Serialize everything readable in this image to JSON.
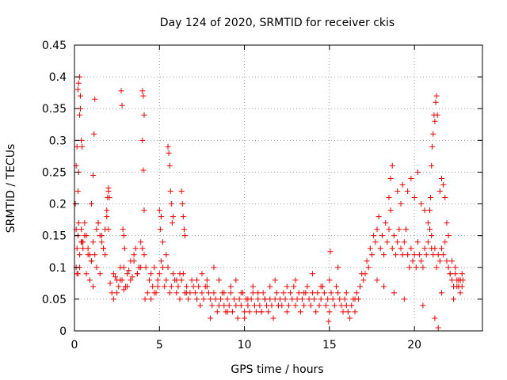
{
  "chart_data": {
    "type": "scatter",
    "title": "Day 124 of 2020, SRMTID for receiver ckis",
    "xlabel": "GPS time / hours",
    "ylabel": "SRMTID / TECUs",
    "xlim": [
      0,
      24
    ],
    "ylim": [
      0,
      0.45
    ],
    "xticks": [
      0,
      5,
      10,
      15,
      20
    ],
    "xtick_labels": [
      "0",
      "5",
      "10",
      "15",
      "20"
    ],
    "yticks": [
      0,
      0.05,
      0.1,
      0.15,
      0.2,
      0.25,
      0.3,
      0.35,
      0.4,
      0.45
    ],
    "ytick_labels": [
      "0",
      "0.05",
      "0.1",
      "0.15",
      "0.2",
      "0.25",
      "0.3",
      "0.35",
      "0.4",
      "0.45"
    ],
    "grid": true,
    "marker": "+",
    "color": "#ff0000",
    "series": [
      {
        "name": "SRMTID",
        "x": [
          0.05,
          0.1,
          0.15,
          0.2,
          0.25,
          0.3,
          0.35,
          0.4,
          0.45,
          0.5,
          0.6,
          0.7,
          0.8,
          0.9,
          1.0,
          1.1,
          1.2,
          1.3,
          1.4,
          1.5,
          1.6,
          1.7,
          1.8,
          1.9,
          2.0,
          0.1,
          0.2,
          0.3,
          0.35,
          0.4,
          0.45,
          0.3,
          0.2,
          0.15,
          0.1,
          0.25,
          1.2,
          1.15,
          1.1,
          1.0,
          1.9,
          1.95,
          2.0,
          2.05,
          0.2,
          0.3,
          0.5,
          0.7,
          0.9,
          1.1,
          1.3,
          1.5,
          1.7,
          0.15,
          0.25,
          0.4,
          0.6,
          0.8,
          1.0,
          1.4,
          1.6,
          1.8,
          2.0,
          2.1,
          2.2,
          2.3,
          2.4,
          2.5,
          2.6,
          2.7,
          2.8,
          2.9,
          3.0,
          3.1,
          3.2,
          3.3,
          3.4,
          3.5,
          3.6,
          3.7,
          3.8,
          3.9,
          4.0,
          4.1,
          4.2,
          2.75,
          2.8,
          2.85,
          2.9,
          2.95,
          4.0,
          4.05,
          4.1,
          4.0,
          4.05,
          4.1,
          2.3,
          2.5,
          2.7,
          2.9,
          3.1,
          3.3,
          3.5,
          3.7,
          3.9,
          4.15,
          4.3,
          4.4,
          4.5,
          4.6,
          4.7,
          4.8,
          4.9,
          5.0,
          5.1,
          5.2,
          5.3,
          5.4,
          5.5,
          5.6,
          5.7,
          5.8,
          5.9,
          6.0,
          6.1,
          6.2,
          6.3,
          6.4,
          6.5,
          6.6,
          6.7,
          6.8,
          6.9,
          7.0,
          5.0,
          5.05,
          5.1,
          5.5,
          5.55,
          5.6,
          5.65,
          5.7,
          5.75,
          5.8,
          6.3,
          6.35,
          6.4,
          6.45,
          6.5,
          4.5,
          4.7,
          4.9,
          5.2,
          5.4,
          6.0,
          6.2,
          6.6,
          7.1,
          7.2,
          7.3,
          7.4,
          7.5,
          7.6,
          7.7,
          7.8,
          7.9,
          8.0,
          8.1,
          8.2,
          8.3,
          8.4,
          8.5,
          8.6,
          8.7,
          8.8,
          8.9,
          9.0,
          9.1,
          9.2,
          9.3,
          9.4,
          9.5,
          9.6,
          9.7,
          9.8,
          9.9,
          10.0,
          10.1,
          10.2,
          10.3,
          10.4,
          10.5,
          10.6,
          10.7,
          10.8,
          10.9,
          11.0,
          11.1,
          11.2,
          11.3,
          11.4,
          11.5,
          11.6,
          11.7,
          11.8,
          11.9,
          12.0,
          7.2,
          7.5,
          7.8,
          8.2,
          8.5,
          8.8,
          9.2,
          9.5,
          9.8,
          10.2,
          10.5,
          10.8,
          11.2,
          11.5,
          11.8,
          8.0,
          9.0,
          10.0,
          11.0,
          12.0,
          12.1,
          12.2,
          12.3,
          12.4,
          12.5,
          12.6,
          12.7,
          12.8,
          12.9,
          13.0,
          13.1,
          13.2,
          13.3,
          13.4,
          13.5,
          13.6,
          13.7,
          13.8,
          13.9,
          14.0,
          14.1,
          14.2,
          14.3,
          14.4,
          14.5,
          14.6,
          14.7,
          14.8,
          14.9,
          15.0,
          15.1,
          15.2,
          15.3,
          15.4,
          15.5,
          15.6,
          15.7,
          15.8,
          15.9,
          16.0,
          16.1,
          16.2,
          16.3,
          16.4,
          16.5,
          16.6,
          16.7,
          16.8,
          16.9,
          17.0,
          12.5,
          13.0,
          13.5,
          14.0,
          14.5,
          15.0,
          15.5,
          16.0,
          16.5,
          14.95,
          15.05,
          17.1,
          17.2,
          17.3,
          17.4,
          17.5,
          17.6,
          17.7,
          17.8,
          17.9,
          18.0,
          18.1,
          18.2,
          18.3,
          18.4,
          18.5,
          18.6,
          18.7,
          18.8,
          18.9,
          19.0,
          19.1,
          19.2,
          19.3,
          19.4,
          19.5,
          19.6,
          19.7,
          19.8,
          19.9,
          20.0,
          20.1,
          20.2,
          20.3,
          20.4,
          20.5,
          20.6,
          20.7,
          20.8,
          20.9,
          21.0,
          18.5,
          18.6,
          18.7,
          19.0,
          19.2,
          19.3,
          19.6,
          19.8,
          20.0,
          20.2,
          20.4,
          20.6,
          20.8,
          17.8,
          18.2,
          18.8,
          19.4,
          20.5,
          20.9,
          20.95,
          21.0,
          21.05,
          21.1,
          21.15,
          21.2,
          21.25,
          21.3,
          21.35,
          21.0,
          21.1,
          21.2,
          21.3,
          21.4,
          21.5,
          21.6,
          21.7,
          21.8,
          21.9,
          22.0,
          22.1,
          22.2,
          22.3,
          22.4,
          22.5,
          22.6,
          22.7,
          22.8,
          22.85,
          21.5,
          21.6,
          21.7,
          21.8,
          21.9,
          22.0,
          22.2,
          22.4,
          22.6,
          22.8,
          21.2,
          21.4,
          21.6,
          22.1,
          22.3,
          22.5,
          22.7
        ],
        "y": [
          0.2,
          0.26,
          0.29,
          0.38,
          0.39,
          0.4,
          0.35,
          0.16,
          0.14,
          0.13,
          0.17,
          0.15,
          0.13,
          0.12,
          0.11,
          0.14,
          0.12,
          0.16,
          0.17,
          0.15,
          0.14,
          0.13,
          0.16,
          0.18,
          0.22,
          0.16,
          0.22,
          0.34,
          0.37,
          0.3,
          0.29,
          0.1,
          0.09,
          0.09,
          0.1,
          0.25,
          0.365,
          0.31,
          0.245,
          0.2,
          0.19,
          0.21,
          0.225,
          0.21,
          0.15,
          0.12,
          0.14,
          0.09,
          0.08,
          0.07,
          0.1,
          0.09,
          0.13,
          0.13,
          0.17,
          0.14,
          0.15,
          0.12,
          0.11,
          0.17,
          0.15,
          0.12,
          0.16,
          0.075,
          0.06,
          0.09,
          0.085,
          0.08,
          0.07,
          0.1,
          0.08,
          0.065,
          0.07,
          0.09,
          0.095,
          0.11,
          0.085,
          0.12,
          0.13,
          0.09,
          0.1,
          0.14,
          0.13,
          0.12,
          0.1,
          0.378,
          0.355,
          0.16,
          0.15,
          0.13,
          0.378,
          0.37,
          0.34,
          0.3,
          0.253,
          0.19,
          0.05,
          0.06,
          0.08,
          0.1,
          0.07,
          0.08,
          0.11,
          0.09,
          0.1,
          0.05,
          0.06,
          0.08,
          0.09,
          0.07,
          0.1,
          0.06,
          0.08,
          0.09,
          0.11,
          0.14,
          0.07,
          0.08,
          0.1,
          0.06,
          0.07,
          0.09,
          0.08,
          0.06,
          0.07,
          0.05,
          0.08,
          0.09,
          0.06,
          0.07,
          0.05,
          0.06,
          0.08,
          0.07,
          0.19,
          0.16,
          0.18,
          0.29,
          0.28,
          0.26,
          0.22,
          0.2,
          0.17,
          0.18,
          0.22,
          0.2,
          0.18,
          0.16,
          0.15,
          0.05,
          0.06,
          0.07,
          0.1,
          0.12,
          0.08,
          0.09,
          0.06,
          0.06,
          0.05,
          0.07,
          0.04,
          0.06,
          0.05,
          0.07,
          0.08,
          0.06,
          0.05,
          0.04,
          0.06,
          0.05,
          0.03,
          0.04,
          0.05,
          0.06,
          0.04,
          0.03,
          0.05,
          0.04,
          0.06,
          0.03,
          0.05,
          0.04,
          0.02,
          0.05,
          0.04,
          0.06,
          0.03,
          0.05,
          0.04,
          0.03,
          0.05,
          0.06,
          0.04,
          0.03,
          0.05,
          0.04,
          0.03,
          0.06,
          0.05,
          0.04,
          0.03,
          0.05,
          0.04,
          0.02,
          0.05,
          0.06,
          0.04,
          0.08,
          0.09,
          0.07,
          0.1,
          0.08,
          0.06,
          0.07,
          0.08,
          0.06,
          0.05,
          0.07,
          0.06,
          0.05,
          0.07,
          0.08,
          0.02,
          0.03,
          0.02,
          0.03,
          0.04,
          0.05,
          0.04,
          0.06,
          0.05,
          0.03,
          0.04,
          0.06,
          0.05,
          0.07,
          0.04,
          0.05,
          0.06,
          0.03,
          0.05,
          0.04,
          0.06,
          0.07,
          0.05,
          0.04,
          0.06,
          0.05,
          0.03,
          0.06,
          0.04,
          0.05,
          0.07,
          0.06,
          0.04,
          0.05,
          0.03,
          0.06,
          0.05,
          0.04,
          0.07,
          0.06,
          0.05,
          0.04,
          0.03,
          0.05,
          0.04,
          0.03,
          0.02,
          0.04,
          0.05,
          0.03,
          0.06,
          0.05,
          0.07,
          0.09,
          0.08,
          0.07,
          0.08,
          0.06,
          0.09,
          0.07,
          0.08,
          0.1,
          0.06,
          0.05,
          0.015,
          0.125,
          0.09,
          0.11,
          0.1,
          0.13,
          0.12,
          0.15,
          0.14,
          0.16,
          0.18,
          0.13,
          0.15,
          0.12,
          0.17,
          0.14,
          0.16,
          0.19,
          0.13,
          0.15,
          0.12,
          0.14,
          0.16,
          0.13,
          0.12,
          0.14,
          0.16,
          0.12,
          0.1,
          0.13,
          0.11,
          0.12,
          0.1,
          0.14,
          0.12,
          0.11,
          0.1,
          0.13,
          0.12,
          0.14,
          0.16,
          0.13,
          0.21,
          0.24,
          0.26,
          0.22,
          0.2,
          0.23,
          0.22,
          0.24,
          0.21,
          0.25,
          0.2,
          0.19,
          0.17,
          0.08,
          0.07,
          0.06,
          0.05,
          0.04,
          0.19,
          0.21,
          0.26,
          0.29,
          0.31,
          0.34,
          0.33,
          0.36,
          0.37,
          0.34,
          0.15,
          0.12,
          0.13,
          0.1,
          0.12,
          0.11,
          0.13,
          0.12,
          0.14,
          0.11,
          0.1,
          0.09,
          0.08,
          0.07,
          0.09,
          0.08,
          0.07,
          0.06,
          0.09,
          0.08,
          0.22,
          0.24,
          0.23,
          0.21,
          0.17,
          0.15,
          0.11,
          0.1,
          0.08,
          0.07,
          0.02,
          0.005,
          0.06,
          0.09,
          0.05,
          0.07,
          0.08
        ]
      }
    ]
  }
}
